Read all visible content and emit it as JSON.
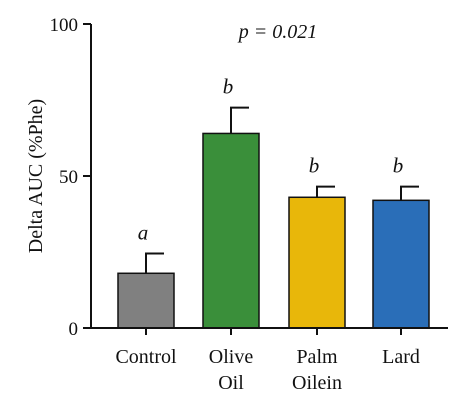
{
  "chart_data": {
    "type": "bar",
    "title": "",
    "xlabel": "",
    "ylabel": "Delta AUC (%Phe)",
    "ylim": [
      0,
      100
    ],
    "yticks": [
      0,
      50,
      100
    ],
    "grid": false,
    "annotation": "p = 0.021",
    "categories": [
      [
        "Control"
      ],
      [
        "Olive",
        "Oil"
      ],
      [
        "Palm",
        "Oilein"
      ],
      [
        "Lard"
      ]
    ],
    "values": [
      18,
      64,
      43,
      42
    ],
    "error_upper": [
      6.5,
      8.5,
      3.5,
      4.5
    ],
    "significance": [
      "a",
      "b",
      "b",
      "b"
    ],
    "colors": [
      "#808080",
      "#3a8f3a",
      "#e8b70a",
      "#2a6eb8"
    ]
  }
}
